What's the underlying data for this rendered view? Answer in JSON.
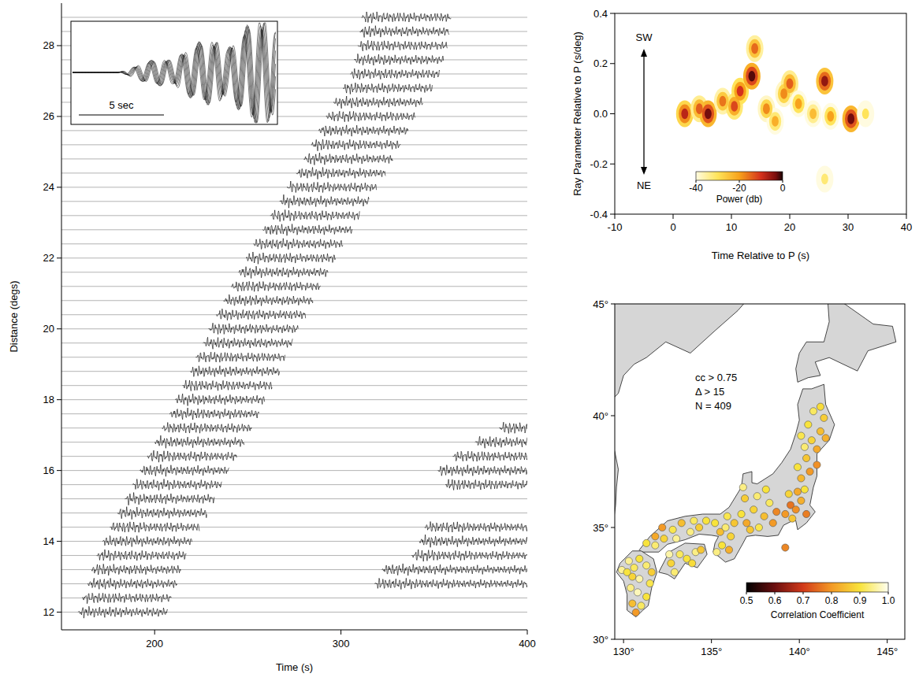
{
  "chart_data": [
    {
      "type": "wiggle",
      "x_label": "Time (s)",
      "y_label": "Distance (degs)",
      "xlim": [
        150,
        400
      ],
      "ylim": [
        11.5,
        29.2
      ],
      "xticks": [
        200,
        300,
        400
      ],
      "yticks": [
        12,
        14,
        16,
        18,
        20,
        22,
        24,
        26,
        28
      ],
      "annotations": [
        "5 sec"
      ],
      "distance": [
        12,
        12.4,
        12.8,
        13.2,
        13.6,
        14,
        14.4,
        14.8,
        15.2,
        15.6,
        16,
        16.4,
        16.8,
        17.2,
        17.6,
        18,
        18.4,
        18.8,
        19.2,
        19.6,
        20,
        20.4,
        20.8,
        21.2,
        21.6,
        22,
        22.4,
        22.8,
        23.2,
        23.6,
        24,
        24.4,
        24.8,
        25.2,
        25.6,
        26,
        26.4,
        26.8,
        27.2,
        27.6,
        28,
        28.4,
        28.8
      ],
      "arrival": [
        159,
        161,
        164,
        166,
        169,
        172,
        176,
        180,
        184,
        188,
        192,
        196,
        200,
        204,
        208,
        211,
        215,
        219,
        222,
        226,
        229,
        233,
        237,
        241,
        245,
        249,
        253,
        258,
        262,
        267,
        271,
        276,
        280,
        284,
        288,
        292,
        296,
        301,
        305,
        307,
        309,
        310,
        311
      ],
      "later_arrival": [
        null,
        null,
        318,
        322,
        338,
        342,
        345,
        null,
        null,
        356,
        352,
        360,
        372,
        385,
        null,
        null,
        null,
        null,
        null,
        null,
        null,
        null,
        null,
        null,
        null,
        null,
        null,
        null,
        null,
        null,
        null,
        null,
        null,
        null,
        null,
        null,
        null,
        null,
        null,
        null,
        null,
        null,
        null
      ]
    },
    {
      "type": "heatmap",
      "x_label": "Time Relative to P (s)",
      "y_label": "Ray Parameter Relative to P (s/deg)",
      "xlim": [
        -10,
        40
      ],
      "ylim": [
        -0.4,
        0.4
      ],
      "xticks": [
        -10,
        0,
        10,
        20,
        30,
        40
      ],
      "yticks": [
        -0.4,
        -0.2,
        {
          "value": 0,
          "label": "0.0"
        },
        0.2,
        0.4
      ],
      "annotations": [
        "SW",
        "NE"
      ],
      "cells": {
        "time": [
          2,
          4.5,
          6,
          8.5,
          10.5,
          11.5,
          13.5,
          14,
          16,
          17.5,
          19,
          20,
          21.5,
          24,
          26,
          27,
          30.5,
          33,
          26
        ],
        "ray": [
          0,
          0.02,
          0,
          0.05,
          0.03,
          0.09,
          0.15,
          0.26,
          0.02,
          -0.03,
          0.08,
          0.12,
          0.04,
          0,
          0.13,
          -0.01,
          -0.02,
          0,
          -0.26
        ],
        "power": [
          -8,
          -14,
          -3,
          -16,
          -12,
          -10,
          -2,
          -15,
          -18,
          -22,
          -18,
          -14,
          -20,
          -24,
          -5,
          -20,
          -3,
          -30,
          -32
        ]
      },
      "colorbar": {
        "label": "Power (db)",
        "range": [
          -40,
          0
        ],
        "ticks": [
          -40,
          -20,
          0
        ]
      }
    },
    {
      "type": "scatter",
      "xlim": [
        129.5,
        146
      ],
      "ylim": [
        30,
        45
      ],
      "xticks": [
        {
          "value": 130,
          "label": "130°"
        },
        {
          "value": 135,
          "label": "135°"
        },
        {
          "value": 140,
          "label": "140°"
        },
        {
          "value": 145,
          "label": "145°"
        }
      ],
      "yticks": [
        {
          "value": 30,
          "label": "30°"
        },
        {
          "value": 35,
          "label": "35°"
        },
        {
          "value": 40,
          "label": "40°"
        },
        {
          "value": 45,
          "label": "45°"
        }
      ],
      "annotations": [
        "cc > 0.75",
        "Δ > 15",
        "N = 409"
      ],
      "points": {
        "lon": [
          130.3,
          130.6,
          130.9,
          131.3,
          130.5,
          130.9,
          131.5,
          130.4,
          130.8,
          131.3,
          130.5,
          131.0,
          129.9,
          130.2,
          131.6,
          130.7,
          132.7,
          133.2,
          133.6,
          134.1,
          134.4,
          132.9,
          133.9,
          132.6,
          131.3,
          131.8,
          132.3,
          132.8,
          133.3,
          133.8,
          134.3,
          134.7,
          132.2,
          131.8,
          133.0,
          134.0,
          135.2,
          135.5,
          135.8,
          136.1,
          135.6,
          136.0,
          135.9,
          136.3,
          135.3,
          136.7,
          137.0,
          137.4,
          137.7,
          138.0,
          138.3,
          137.6,
          136.9,
          138.5,
          138.1,
          138.7,
          137.2,
          136.8,
          139.2,
          139.5,
          139.8,
          140.1,
          139.4,
          139.9,
          140.4,
          139.6,
          140.3,
          139.2,
          140.1,
          140.6,
          139.9,
          140.4,
          141.0,
          140.7,
          141.2,
          140.5,
          141.4,
          140.8,
          141.2,
          140.3,
          141.5,
          140.1,
          141.0
        ],
        "lat": [
          33.5,
          33.2,
          33.6,
          33.3,
          32.8,
          32.7,
          32.5,
          32.3,
          32.1,
          31.9,
          31.6,
          31.5,
          33.1,
          33.0,
          33.0,
          31.2,
          33.4,
          33.8,
          33.6,
          33.9,
          34.0,
          33.0,
          33.4,
          33.8,
          34.3,
          34.2,
          34.5,
          34.9,
          35.2,
          34.8,
          35.0,
          35.3,
          35.0,
          34.6,
          34.5,
          35.3,
          35.2,
          34.8,
          35.0,
          34.6,
          34.2,
          34.0,
          35.5,
          35.2,
          33.9,
          35.6,
          35.2,
          35.8,
          35.0,
          35.5,
          36.1,
          36.4,
          36.3,
          35.2,
          36.7,
          35.7,
          34.9,
          36.8,
          35.6,
          36.0,
          35.8,
          36.2,
          36.5,
          36.6,
          35.6,
          35.4,
          36.7,
          34.1,
          37.2,
          37.5,
          37.7,
          38.1,
          38.5,
          38.9,
          39.3,
          39.6,
          39.9,
          40.2,
          40.4,
          38.6,
          39.0,
          39.1,
          37.8
        ],
        "cc": [
          0.95,
          0.92,
          0.9,
          0.93,
          0.88,
          0.96,
          0.91,
          0.94,
          0.97,
          0.9,
          0.85,
          0.92,
          0.95,
          0.9,
          0.87,
          0.8,
          0.88,
          0.92,
          0.9,
          0.94,
          0.86,
          0.93,
          0.89,
          0.96,
          0.9,
          0.93,
          0.88,
          0.91,
          0.85,
          0.94,
          0.87,
          0.9,
          0.8,
          0.82,
          0.95,
          0.92,
          0.9,
          0.85,
          0.93,
          0.88,
          0.9,
          0.83,
          0.91,
          0.86,
          0.94,
          0.9,
          0.82,
          0.88,
          0.91,
          0.85,
          0.92,
          0.93,
          0.87,
          0.8,
          0.9,
          0.78,
          0.86,
          0.94,
          0.8,
          0.76,
          0.79,
          0.83,
          0.88,
          0.82,
          0.77,
          0.86,
          0.9,
          0.78,
          0.84,
          0.8,
          0.9,
          0.86,
          0.82,
          0.88,
          0.85,
          0.9,
          0.87,
          0.92,
          0.89,
          0.93,
          0.83,
          0.91,
          0.79
        ]
      },
      "colorbar": {
        "label": "Correlation Coefficient",
        "range": [
          0.5,
          1.0
        ],
        "ticks": [
          0.5,
          0.6,
          0.7,
          0.8,
          0.9,
          {
            "value": 1.0,
            "label": "1.0"
          }
        ]
      }
    }
  ]
}
